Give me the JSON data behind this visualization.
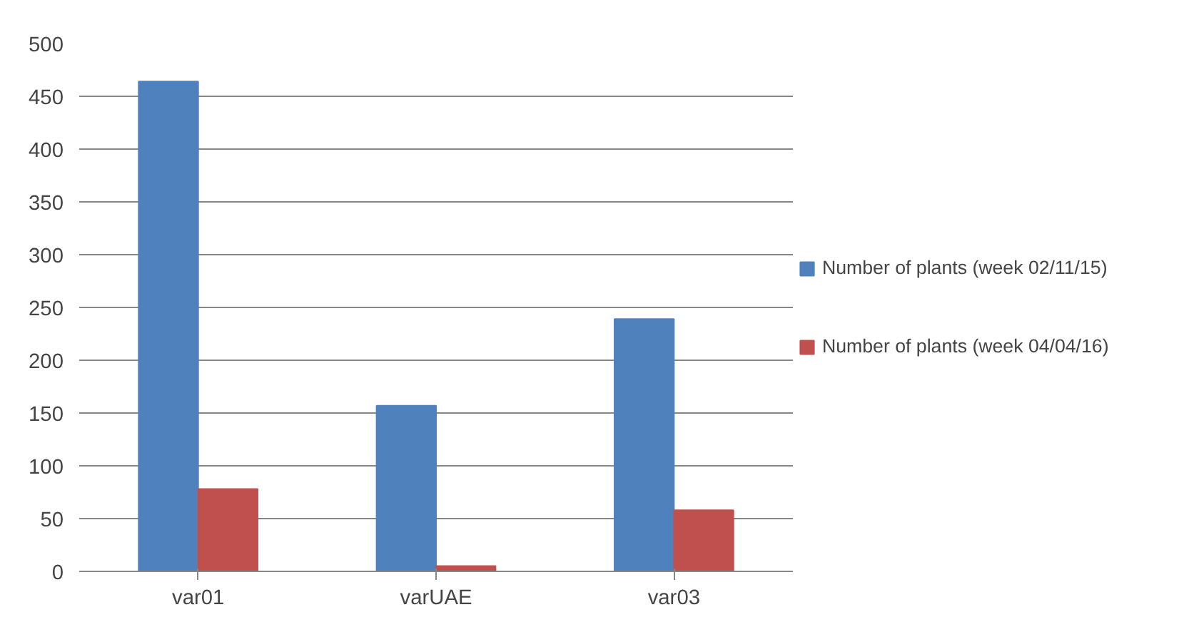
{
  "chart_data": {
    "type": "bar",
    "categories": [
      "var01",
      "varUAE",
      "var03"
    ],
    "series": [
      {
        "name": "Number of plants (week 02/11/15)",
        "color": "#4f81bd",
        "values": [
          464,
          157,
          239
        ]
      },
      {
        "name": "Number of plants (week 04/04/16)",
        "color": "#c0504d",
        "values": [
          78,
          5,
          58
        ]
      }
    ],
    "ylim": [
      0,
      500
    ],
    "yticks": [
      0,
      50,
      100,
      150,
      200,
      250,
      300,
      350,
      400,
      450,
      500
    ],
    "grid": "y",
    "legend": "right"
  }
}
